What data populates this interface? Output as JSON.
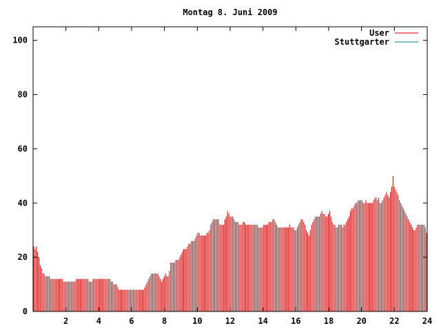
{
  "chart_data": {
    "type": "bar",
    "title": "Montag 8. Juni 2009",
    "xlabel": "",
    "ylabel": "",
    "xlim": [
      0,
      24
    ],
    "ylim": [
      0,
      105
    ],
    "x_ticks": [
      "2",
      "4",
      "6",
      "8",
      "10",
      "12",
      "14",
      "16",
      "18",
      "20",
      "22",
      "24"
    ],
    "x_tick_values": [
      2,
      4,
      6,
      8,
      10,
      12,
      14,
      16,
      18,
      20,
      22,
      24
    ],
    "y_ticks": [
      "0",
      "20",
      "40",
      "60",
      "80",
      "100"
    ],
    "y_tick_values": [
      0,
      20,
      40,
      60,
      80,
      100
    ],
    "legend_position": "top-right",
    "series": [
      {
        "name": "User",
        "color": "#cc0000",
        "bar_interval_hours": 0.0833,
        "values": [
          24,
          23,
          24,
          22,
          20,
          17,
          16,
          14,
          14,
          13,
          13,
          13,
          13,
          12,
          12,
          12,
          12,
          12,
          12,
          12,
          12,
          12,
          12,
          11,
          11,
          11,
          11,
          11,
          11,
          11,
          11,
          11,
          11,
          12,
          12,
          12,
          12,
          12,
          12,
          12,
          12,
          12,
          12,
          11,
          11,
          11,
          12,
          12,
          12,
          12,
          12,
          12,
          12,
          12,
          12,
          12,
          12,
          12,
          12,
          12,
          11,
          11,
          10,
          10,
          10,
          9,
          8,
          8,
          8,
          8,
          8,
          8,
          8,
          8,
          8,
          8,
          8,
          8,
          8,
          8,
          8,
          8,
          8,
          8,
          8,
          8,
          9,
          10,
          11,
          12,
          13,
          14,
          14,
          14,
          14,
          14,
          14,
          13,
          12,
          11,
          12,
          13,
          14,
          13,
          13,
          15,
          18,
          18,
          18,
          18,
          19,
          19,
          19,
          20,
          21,
          22,
          23,
          23,
          23,
          24,
          25,
          25,
          26,
          26,
          26,
          27,
          28,
          29,
          29,
          28,
          28,
          28,
          28,
          28,
          29,
          29,
          30,
          32,
          33,
          34,
          34,
          34,
          34,
          34,
          32,
          32,
          32,
          32,
          34,
          35,
          37,
          36,
          35,
          35,
          35,
          34,
          33,
          33,
          33,
          32,
          32,
          32,
          33,
          33,
          32,
          32,
          32,
          32,
          32,
          32,
          32,
          32,
          32,
          32,
          31,
          31,
          31,
          31,
          32,
          32,
          32,
          32,
          33,
          33,
          33,
          34,
          34,
          33,
          32,
          31,
          31,
          31,
          31,
          31,
          31,
          31,
          31,
          31,
          32,
          31,
          31,
          31,
          30,
          30,
          31,
          32,
          33,
          34,
          34,
          33,
          32,
          30,
          29,
          28,
          30,
          32,
          33,
          34,
          35,
          35,
          35,
          35,
          36,
          37,
          36,
          36,
          35,
          35,
          36,
          37,
          35,
          33,
          32,
          32,
          31,
          31,
          32,
          32,
          32,
          31,
          32,
          32,
          33,
          34,
          35,
          37,
          38,
          38,
          39,
          40,
          40,
          41,
          41,
          41,
          41,
          40,
          40,
          41,
          40,
          40,
          40,
          40,
          40,
          41,
          42,
          42,
          41,
          42,
          40,
          40,
          41,
          42,
          43,
          44,
          43,
          42,
          44,
          46,
          50,
          46,
          45,
          44,
          43,
          41,
          40,
          39,
          38,
          37,
          36,
          35,
          34,
          33,
          32,
          31,
          30,
          30,
          31,
          32,
          32,
          32,
          32,
          32,
          32,
          31,
          29
        ]
      },
      {
        "name": "Stuttgarter",
        "color": "#008080",
        "values": []
      }
    ]
  }
}
